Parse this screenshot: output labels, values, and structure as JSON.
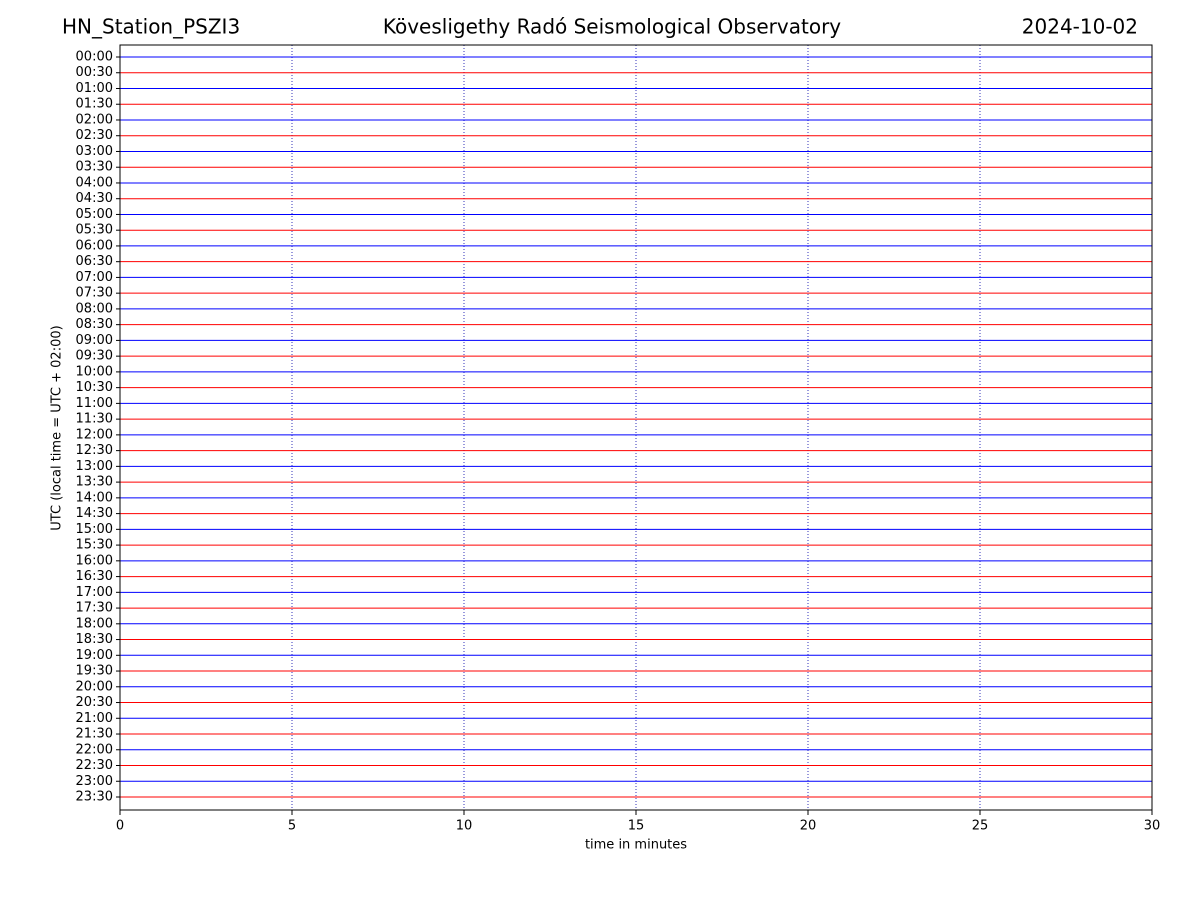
{
  "chart_data": {
    "type": "helicorder",
    "title": "Kövesligethy Radó Seismological Observatory",
    "station": "HN_Station_PSZI3",
    "date": "2024-10-02",
    "x_label": "time in minutes",
    "y_label": "UTC (local time = UTC + 02:00)",
    "categories": [
      "00:00",
      "00:30",
      "01:00",
      "01:30",
      "02:00",
      "02:30",
      "03:00",
      "03:30",
      "04:00",
      "04:30",
      "05:00",
      "05:30",
      "06:00",
      "06:30",
      "07:00",
      "07:30",
      "08:00",
      "08:30",
      "09:00",
      "09:30",
      "10:00",
      "10:30",
      "11:00",
      "11:30",
      "12:00",
      "12:30",
      "13:00",
      "13:30",
      "14:00",
      "14:30",
      "15:00",
      "15:30",
      "16:00",
      "16:30",
      "17:00",
      "17:30",
      "18:00",
      "18:30",
      "19:00",
      "19:30",
      "20:00",
      "20:30",
      "21:00",
      "21:30",
      "22:00",
      "22:30",
      "23:00",
      "23:30"
    ],
    "row_colors": [
      "#0000ff",
      "#ff0000"
    ],
    "xlim": [
      0,
      30
    ],
    "xticks": [
      0,
      5,
      10,
      15,
      20,
      25,
      30
    ],
    "grid": true,
    "grid_color": "#0000aa"
  }
}
